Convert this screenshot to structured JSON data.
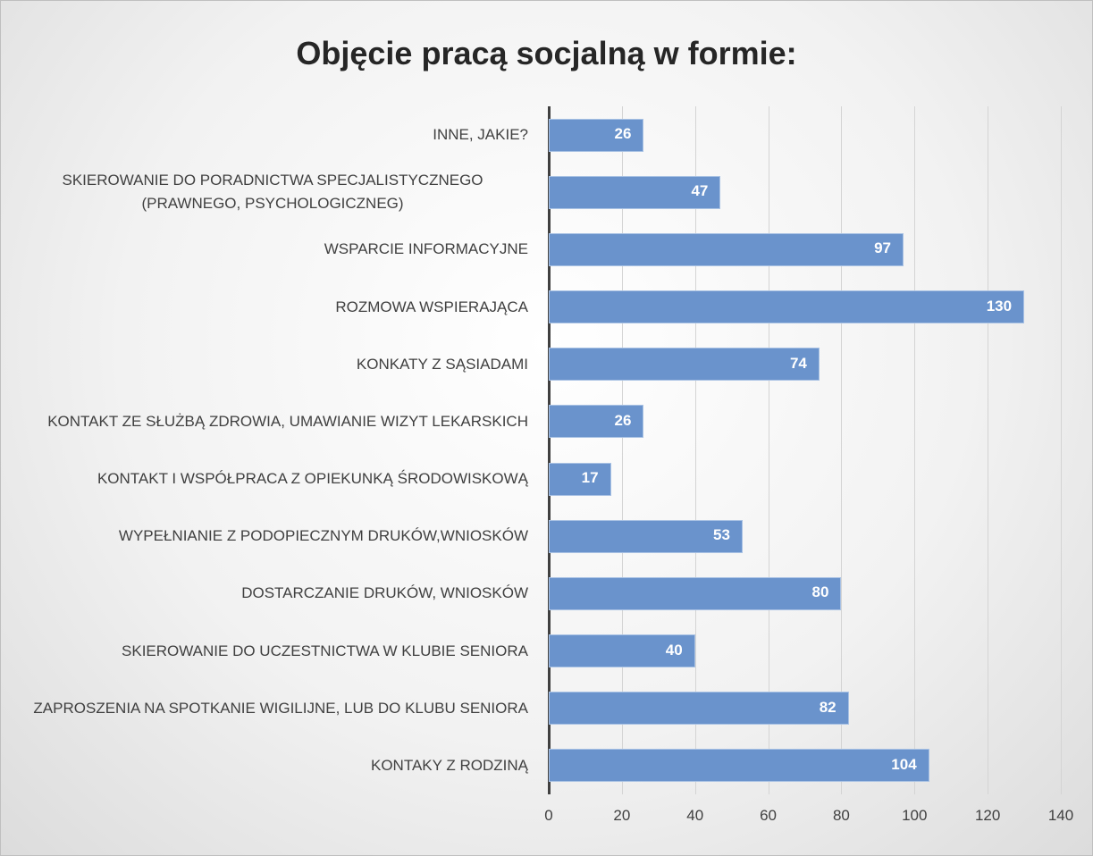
{
  "chart_data": {
    "type": "bar",
    "orientation": "horizontal",
    "title": "Objęcie pracą socjalną w formie:",
    "categories": [
      "INNE, JAKIE?",
      "SKIEROWANIE DO PORADNICTWA SPECJALISTYCZNEGO (PRAWNEGO, PSYCHOLOGICZNEG)",
      "WSPARCIE INFORMACYJNE",
      "ROZMOWA WSPIERAJĄCA",
      "KONKATY Z SĄSIADAMI",
      "KONTAKT ZE SŁUŻBĄ ZDROWIA, UMAWIANIE WIZYT LEKARSKICH",
      "KONTAKT I WSPÓŁPRACA Z OPIEKUNKĄ ŚRODOWISKOWĄ",
      "WYPEŁNIANIE Z PODOPIECZNYM DRUKÓW,WNIOSKÓW",
      "DOSTARCZANIE DRUKÓW, WNIOSKÓW",
      "SKIEROWANIE DO UCZESTNICTWA W KLUBIE SENIORA",
      "ZAPROSZENIA NA SPOTKANIE WIGILIJNE, LUB DO KLUBU SENIORA",
      "KONTAKY Z RODZINĄ"
    ],
    "values": [
      26,
      47,
      97,
      130,
      74,
      26,
      17,
      53,
      80,
      40,
      82,
      104
    ],
    "color": "#6a93cc",
    "xlim": [
      0,
      140
    ],
    "xticks": [
      0,
      20,
      40,
      60,
      80,
      100,
      120,
      140
    ],
    "grid": true
  }
}
